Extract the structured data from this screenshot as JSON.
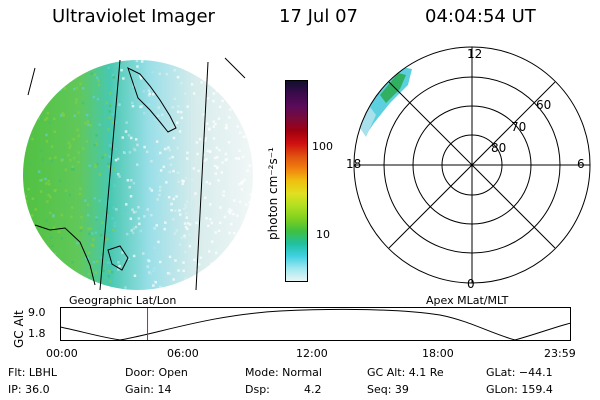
{
  "header": {
    "instrument": "Ultraviolet Imager",
    "date": "17 Jul 07",
    "time": "04:04:54 UT"
  },
  "colorbar": {
    "unit_label": "photon cm⁻²s⁻¹",
    "ticks": [
      "100",
      "10"
    ],
    "colors": [
      "#101030",
      "#3b0a4a",
      "#5a0b5a",
      "#7a0a3a",
      "#a00010",
      "#d01010",
      "#e05010",
      "#f08010",
      "#f0c010",
      "#e0e020",
      "#b0e020",
      "#80d020",
      "#40c040",
      "#20c0a0",
      "#40d0e0",
      "#a0e8f0",
      "#e8f4f4"
    ]
  },
  "left_map": {
    "label": "Geographic Lat/Lon"
  },
  "right_map": {
    "label": "Apex MLat/MLT",
    "lat_labels": [
      "60",
      "70",
      "80"
    ],
    "mlt_labels": {
      "top": "12",
      "left": "18",
      "right": "6",
      "bottom": "0"
    }
  },
  "altitude_plot": {
    "ylabel": "GC Alt",
    "ymax": "9.0",
    "ymin": "1.8",
    "xticks": [
      "00:00",
      "06:00",
      "12:00",
      "18:00",
      "23:59"
    ],
    "marker_time_fraction": 0.17
  },
  "params": {
    "flt": "Flt: LBHL",
    "ip": "IP: 36.0",
    "door": "Door: Open",
    "gain": "Gain: 14",
    "mode": "Mode: Normal",
    "dsp_label": "Dsp:",
    "dsp_value": "4.2",
    "gcalt": "GC Alt: 4.1 Re",
    "seq": "Seq: 39",
    "glat": "GLat: −44.1",
    "glon": "GLon: 159.4"
  }
}
